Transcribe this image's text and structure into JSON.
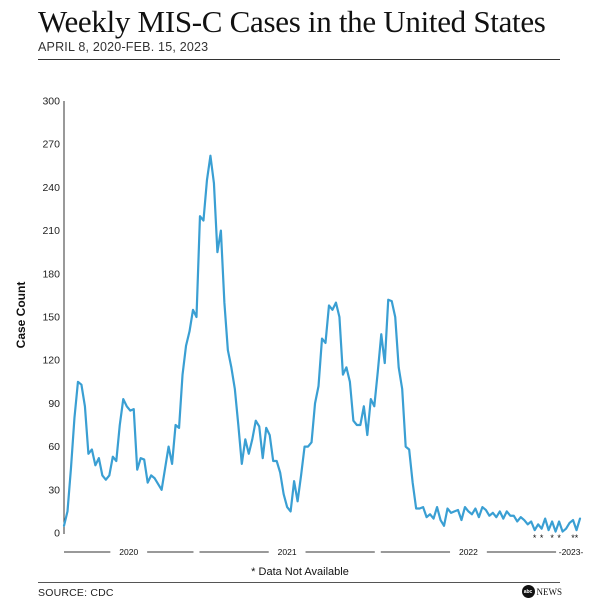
{
  "title": "Weekly MIS-C Cases in the United States",
  "subtitle": "APRIL 8, 2020-FEB. 15, 2023",
  "note": "* Data Not Available",
  "source": "SOURCE: CDC",
  "logo": {
    "mark": "abc",
    "text": "NEWS"
  },
  "colors": {
    "line": "#3a9fd3",
    "axis": "#333333",
    "text": "#111111"
  },
  "chart_data": {
    "type": "line",
    "ylabel": "Case Count",
    "ylim": [
      0,
      300
    ],
    "yticks": [
      0,
      30,
      60,
      90,
      120,
      150,
      180,
      210,
      240,
      270,
      300
    ],
    "grid": false,
    "legend": "none",
    "x_start_week": 0,
    "year_periods": [
      {
        "label": "2020",
        "start": 0,
        "end": 38
      },
      {
        "label": "2021",
        "start": 38,
        "end": 90
      },
      {
        "label": "2022",
        "start": 90,
        "end": 142
      },
      {
        "label": "-2023-",
        "start": 142,
        "end": 149
      }
    ],
    "missing_marker": "*",
    "missing_weeks": [
      135,
      137,
      140,
      142,
      146,
      147
    ],
    "series": [
      {
        "values": [
          5,
          15,
          45,
          80,
          105,
          103,
          88,
          55,
          58,
          47,
          52,
          40,
          37,
          40,
          53,
          50,
          75,
          93,
          88,
          85,
          86,
          44,
          52,
          51,
          35,
          40,
          38,
          34,
          30,
          45,
          60,
          48,
          75,
          73,
          110,
          130,
          140,
          155,
          150,
          220,
          217,
          245,
          262,
          243,
          195,
          210,
          160,
          127,
          115,
          100,
          75,
          48,
          65,
          55,
          65,
          78,
          74,
          52,
          73,
          68,
          50,
          50,
          42,
          27,
          18,
          15,
          36,
          22,
          40,
          60,
          60,
          63,
          90,
          102,
          135,
          132,
          158,
          155,
          160,
          150,
          110,
          115,
          105,
          78,
          75,
          75,
          88,
          68,
          93,
          88,
          112,
          138,
          118,
          162,
          161,
          150,
          115,
          100,
          60,
          58,
          35,
          17,
          17,
          18,
          11,
          13,
          10,
          18,
          9,
          5,
          17,
          14,
          15,
          16,
          9,
          18,
          15,
          13,
          17,
          11,
          18,
          16,
          12,
          14,
          11,
          15,
          10,
          15,
          12,
          12,
          8,
          11,
          9,
          6,
          8,
          2,
          6,
          3,
          10,
          2,
          8,
          1,
          8,
          1,
          3,
          7,
          9,
          2,
          10
        ]
      }
    ]
  }
}
